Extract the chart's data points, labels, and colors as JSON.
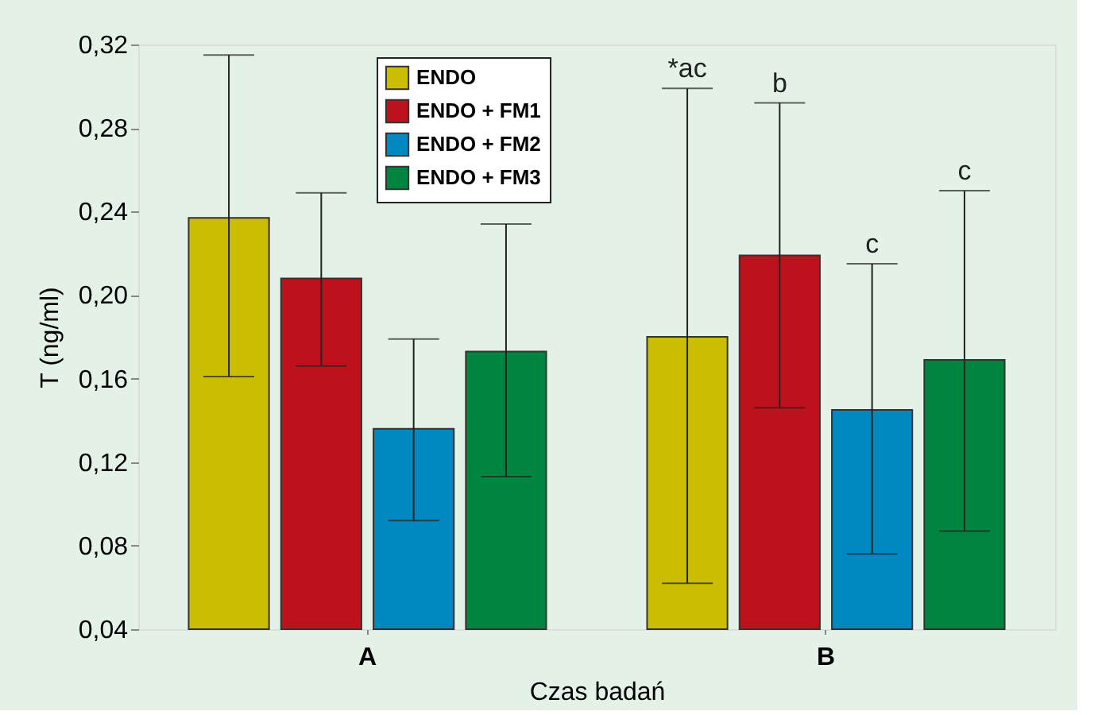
{
  "chart_data": {
    "type": "bar",
    "xlabel": "Czas badań",
    "ylabel": "T (ng/ml)",
    "categories": [
      "A",
      "B"
    ],
    "series": [
      {
        "name": "ENDO",
        "color": "#cbbd00",
        "values": [
          0.237,
          0.18
        ],
        "errors": [
          [
            0.161,
            0.315
          ],
          [
            0.062,
            0.299
          ]
        ]
      },
      {
        "name": "ENDO + FM1",
        "color": "#bd111b",
        "values": [
          0.208,
          0.219
        ],
        "errors": [
          [
            0.166,
            0.249
          ],
          [
            0.146,
            0.292
          ]
        ]
      },
      {
        "name": "ENDO + FM2",
        "color": "#0089c1",
        "values": [
          0.136,
          0.145
        ],
        "errors": [
          [
            0.092,
            0.179
          ],
          [
            0.076,
            0.215
          ]
        ]
      },
      {
        "name": "ENDO + FM3",
        "color": "#008540",
        "values": [
          0.173,
          0.169
        ],
        "errors": [
          [
            0.113,
            0.234
          ],
          [
            0.087,
            0.25
          ]
        ]
      }
    ],
    "ylim": [
      0.04,
      0.32
    ],
    "yticks": [
      {
        "value": 0.04,
        "label": "0,04"
      },
      {
        "value": 0.08,
        "label": "0,08"
      },
      {
        "value": 0.12,
        "label": "0,12"
      },
      {
        "value": 0.16,
        "label": "0,16"
      },
      {
        "value": 0.2,
        "label": "0,20"
      },
      {
        "value": 0.24,
        "label": "0,24"
      },
      {
        "value": 0.28,
        "label": "0,28"
      },
      {
        "value": 0.32,
        "label": "0,32"
      }
    ],
    "annotations": [
      "*ac",
      "b",
      "c",
      "c"
    ],
    "legend": "top",
    "grid": false
  }
}
